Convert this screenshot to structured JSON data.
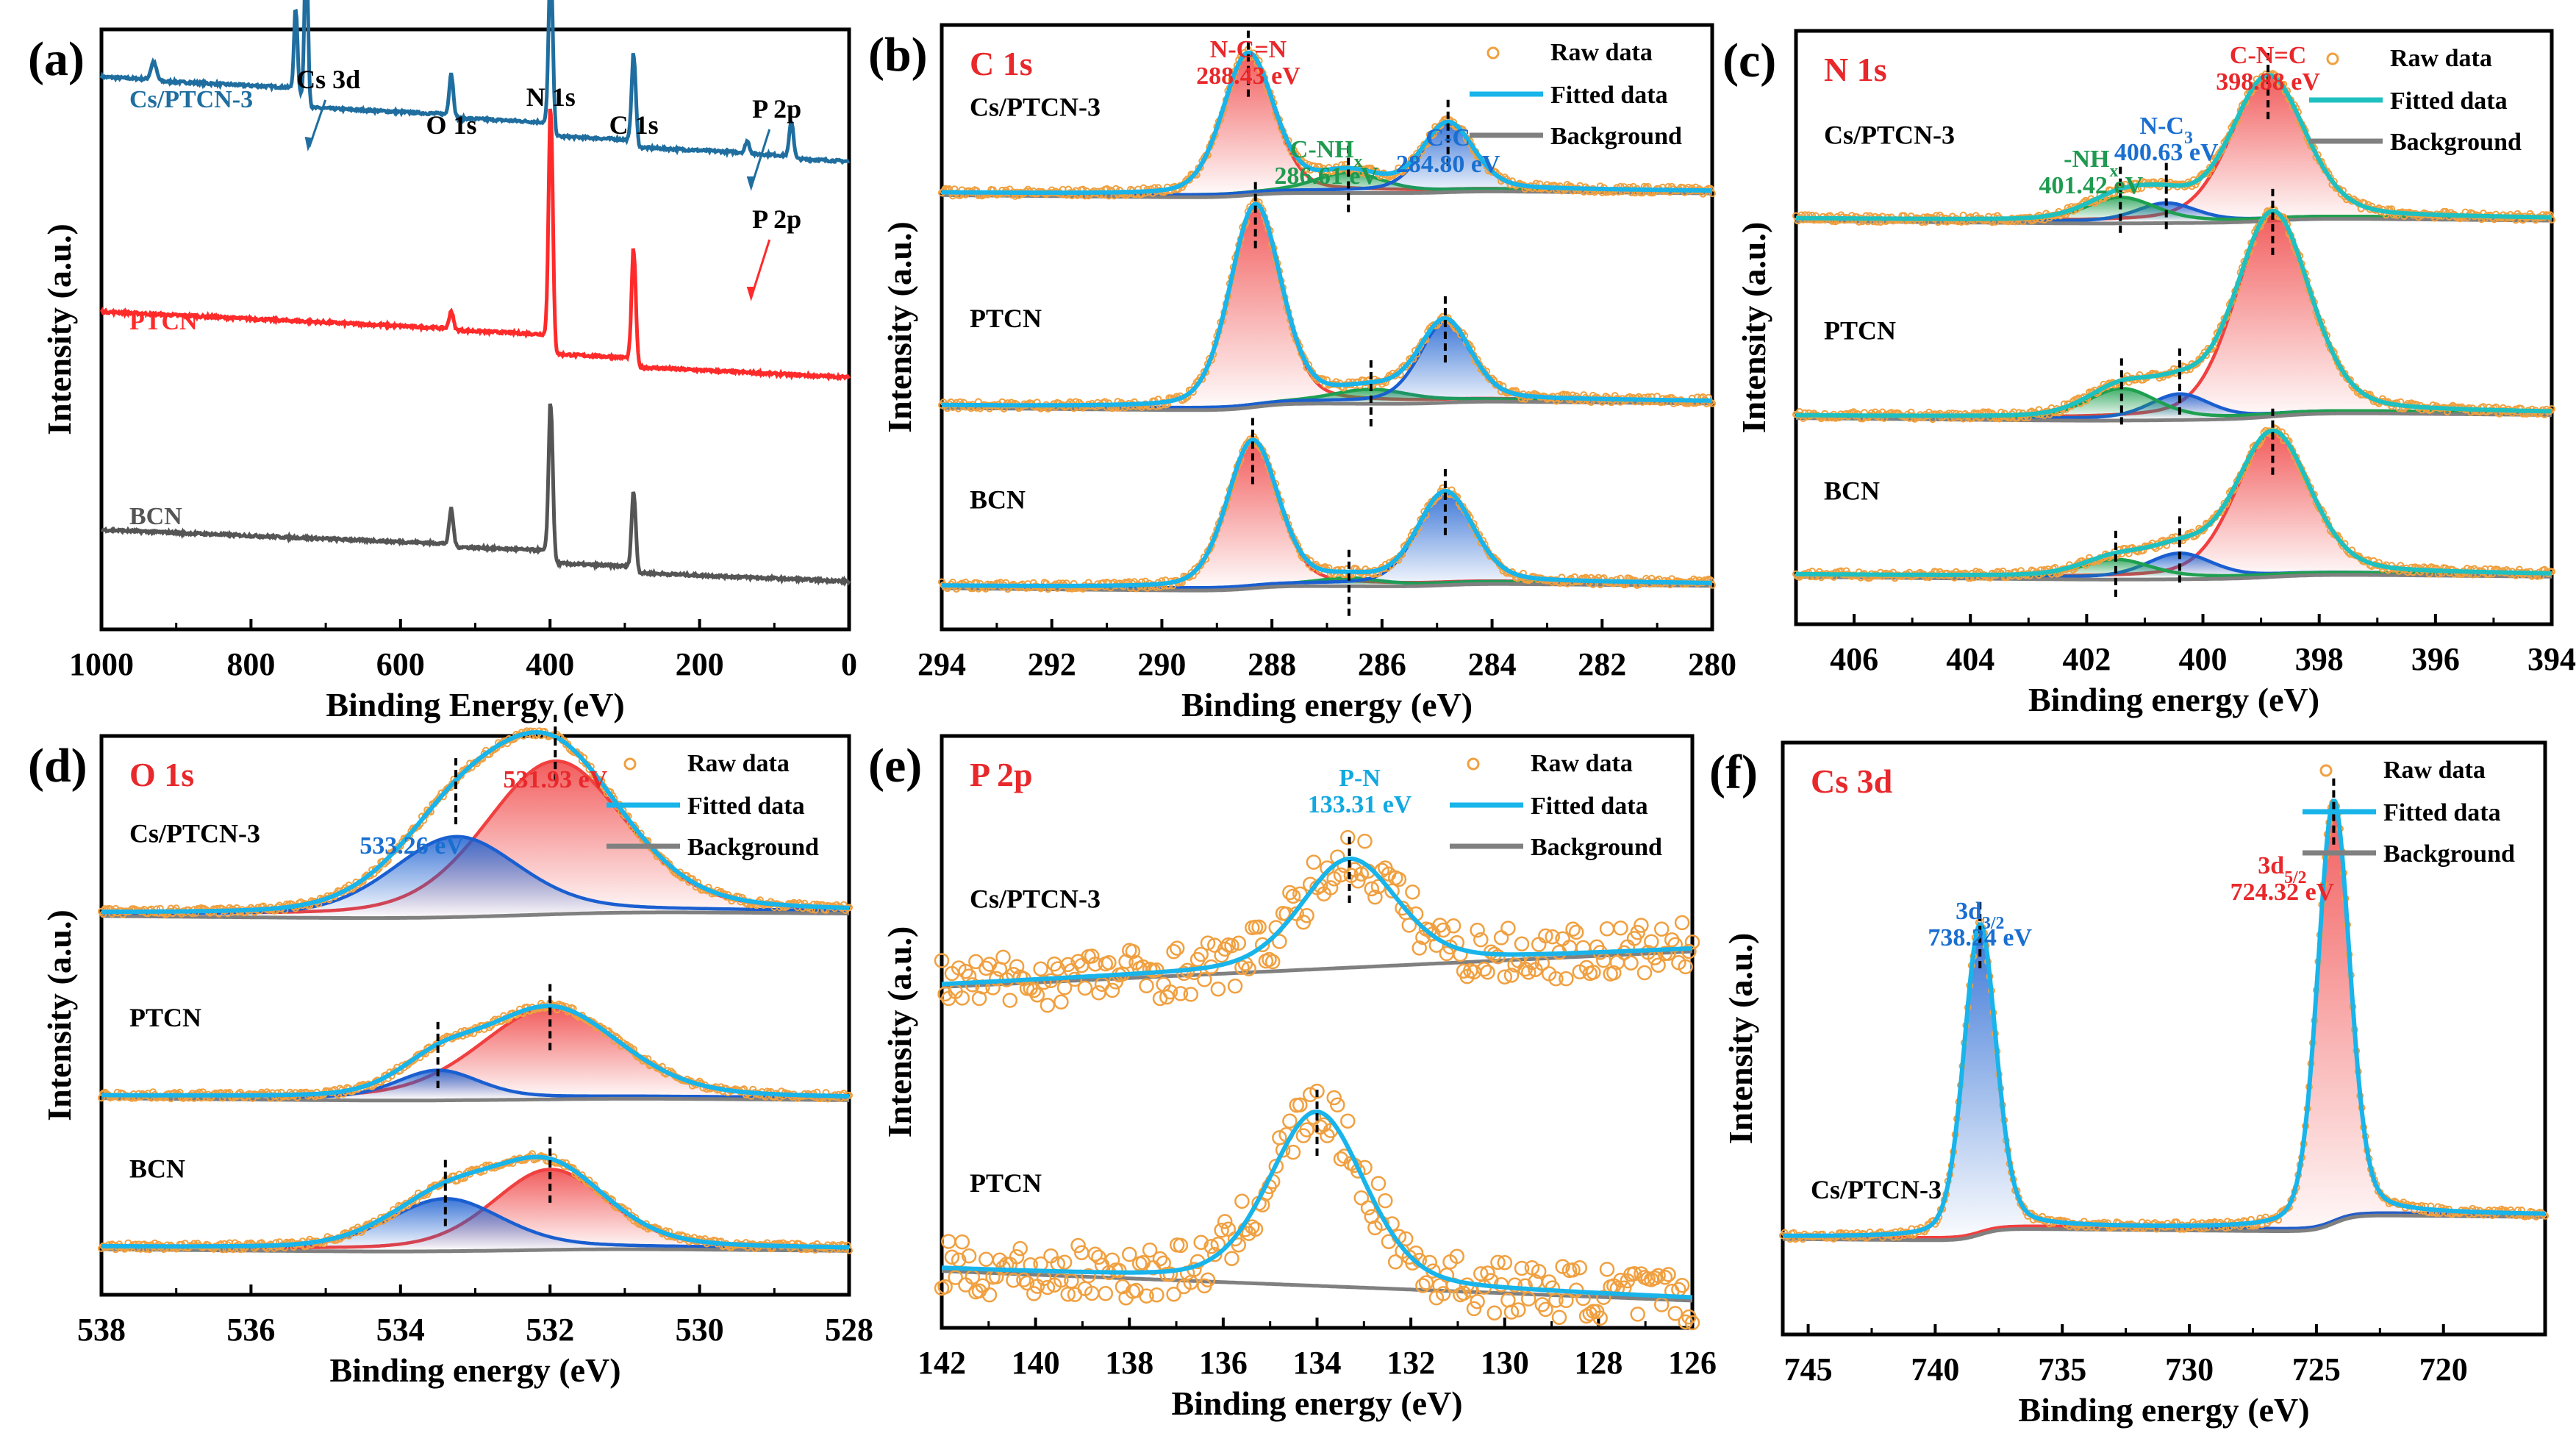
{
  "figure": {
    "legend_labels": {
      "raw": "Raw data",
      "fit": "Fitted data",
      "bg": "Background"
    },
    "colors": {
      "blue_survey": "#1f6e9f",
      "red": "#ff2a2a",
      "gray": "#555555",
      "fit": "#18b4ea",
      "fit_teal": "#1fc0c0",
      "raw": "#f0a040",
      "bg": "#808080",
      "peak_red": "#f04040",
      "peak_blue": "#1a5fd0",
      "peak_green": "#1fa050",
      "label_red": "#e8282b",
      "label_blue": "#1a6fd0",
      "label_green": "#1f9a50",
      "label_cyan": "#12a8e0"
    }
  },
  "chart_data": [
    {
      "id": "a",
      "panel_label": "(a)",
      "type": "line",
      "title": "",
      "xlabel": "Binding Energy (eV)",
      "ylabel": "Intensity (a.u.)",
      "xlim": [
        1000,
        0
      ],
      "xticks": [
        1000,
        800,
        600,
        400,
        200,
        0
      ],
      "xtick_labels": [
        "1000",
        "800",
        "600",
        "400",
        "200",
        "0"
      ],
      "series": [
        {
          "name": "Cs/PTCN-3",
          "color": "#1f6e9f",
          "offset": 0.78,
          "slope": 0.06,
          "peaks": [
            [
              726,
              0.26,
              2.5
            ],
            [
              740,
              0.14,
              2.5
            ],
            [
              532,
              0.07,
              3
            ],
            [
              399,
              0.28,
              3
            ],
            [
              288,
              0.15,
              3
            ],
            [
              136,
              0.02,
              3
            ],
            [
              77,
              0.06,
              3
            ],
            [
              930,
              0.03,
              4
            ]
          ]
        },
        {
          "name": "PTCN",
          "color": "#ff2a2a",
          "offset": 0.42,
          "slope": 0.06,
          "peaks": [
            [
              532,
              0.03,
              3
            ],
            [
              399,
              0.4,
              3
            ],
            [
              288,
              0.19,
              3
            ]
          ]
        },
        {
          "name": "BCN",
          "color": "#555555",
          "offset": 0.08,
          "slope": 0.05,
          "peaks": [
            [
              532,
              0.06,
              3
            ],
            [
              399,
              0.26,
              3
            ],
            [
              288,
              0.13,
              3
            ]
          ]
        }
      ],
      "annotations": [
        {
          "text": "Cs 3d",
          "x": 726
        },
        {
          "text": "O 1s",
          "x": 532
        },
        {
          "text": "N 1s",
          "x": 399
        },
        {
          "text": "C 1s",
          "x": 288
        },
        {
          "text": "P 2p",
          "x": 136,
          "series": "Cs/PTCN-3"
        },
        {
          "text": "P 2p",
          "x": 136,
          "series": "PTCN"
        }
      ]
    },
    {
      "id": "b",
      "panel_label": "(b)",
      "type": "line",
      "title": "C 1s",
      "xlabel": "Binding energy (eV)",
      "ylabel": "Intensity (a.u.)",
      "xlim": [
        294,
        280
      ],
      "xticks": [
        294,
        292,
        290,
        288,
        286,
        284,
        282,
        280
      ],
      "xtick_labels": [
        "294",
        "292",
        "290",
        "288",
        "286",
        "284",
        "282",
        "280"
      ],
      "legend": [
        "Raw data",
        "Fitted data",
        "Background"
      ],
      "peak_labels": [
        {
          "name": "N-C=N",
          "value": "288.43 eV",
          "x": 288.43,
          "color": "#e8282b"
        },
        {
          "name": "C-NHx",
          "value": "286.61 eV",
          "x": 286.61,
          "color": "#1f9a50"
        },
        {
          "name": "C-C",
          "value": "284.80 eV",
          "x": 284.8,
          "color": "#1a6fd0"
        }
      ],
      "series": [
        {
          "name": "Cs/PTCN-3",
          "offset": 0.73,
          "components": [
            {
              "center": 288.43,
              "height": 0.23,
              "fwhm": 1.1,
              "color": "#f04040"
            },
            {
              "center": 286.61,
              "height": 0.03,
              "fwhm": 1.4,
              "color": "#1fa050"
            },
            {
              "center": 284.8,
              "height": 0.11,
              "fwhm": 1.1,
              "color": "#1a5fd0"
            }
          ]
        },
        {
          "name": "PTCN",
          "offset": 0.38,
          "components": [
            {
              "center": 288.3,
              "height": 0.33,
              "fwhm": 1.1,
              "color": "#f04040"
            },
            {
              "center": 286.2,
              "height": 0.02,
              "fwhm": 1.6,
              "color": "#1fa050"
            },
            {
              "center": 284.85,
              "height": 0.13,
              "fwhm": 1.1,
              "color": "#1a5fd0"
            }
          ]
        },
        {
          "name": "BCN",
          "offset": 0.08,
          "components": [
            {
              "center": 288.35,
              "height": 0.24,
              "fwhm": 1.1,
              "color": "#f04040"
            },
            {
              "center": 286.6,
              "height": 0.01,
              "fwhm": 1.2,
              "color": "#1fa050"
            },
            {
              "center": 284.85,
              "height": 0.15,
              "fwhm": 1.2,
              "color": "#1a5fd0"
            }
          ]
        }
      ]
    },
    {
      "id": "c",
      "panel_label": "(c)",
      "type": "line",
      "title": "N 1s",
      "xlabel": "Binding energy (eV)",
      "ylabel": "Intensity (a.u.)",
      "xlim": [
        407,
        394
      ],
      "xticks": [
        406,
        404,
        402,
        400,
        398,
        396,
        394
      ],
      "xtick_labels": [
        "406",
        "404",
        "402",
        "400",
        "398",
        "396",
        "394"
      ],
      "legend": [
        "Raw data",
        "Fitted data",
        "Background"
      ],
      "peak_labels": [
        {
          "name": "C-N=C",
          "value": "398.88 eV",
          "x": 398.88,
          "color": "#e8282b"
        },
        {
          "name": "N-C3",
          "value": "400.63 eV",
          "x": 400.63,
          "color": "#1a6fd0"
        },
        {
          "name": "-NHx",
          "value": "401.42 eV",
          "x": 401.42,
          "color": "#1f9a50"
        }
      ],
      "series": [
        {
          "name": "Cs/PTCN-3",
          "offset": 0.69,
          "components": [
            {
              "center": 398.88,
              "height": 0.24,
              "fwhm": 1.5,
              "color": "#f04040"
            },
            {
              "center": 400.63,
              "height": 0.03,
              "fwhm": 1.2,
              "color": "#1a5fd0"
            },
            {
              "center": 401.42,
              "height": 0.04,
              "fwhm": 1.4,
              "color": "#1fa050"
            }
          ]
        },
        {
          "name": "PTCN",
          "offset": 0.36,
          "components": [
            {
              "center": 398.8,
              "height": 0.34,
              "fwhm": 1.5,
              "color": "#f04040"
            },
            {
              "center": 400.4,
              "height": 0.04,
              "fwhm": 1.2,
              "color": "#1a5fd0"
            },
            {
              "center": 401.4,
              "height": 0.05,
              "fwhm": 1.4,
              "color": "#1fa050"
            }
          ]
        },
        {
          "name": "BCN",
          "offset": 0.09,
          "components": [
            {
              "center": 398.8,
              "height": 0.24,
              "fwhm": 1.5,
              "color": "#f04040"
            },
            {
              "center": 400.4,
              "height": 0.04,
              "fwhm": 1.3,
              "color": "#1a5fd0"
            },
            {
              "center": 401.5,
              "height": 0.03,
              "fwhm": 1.4,
              "color": "#1fa050"
            }
          ]
        }
      ]
    },
    {
      "id": "d",
      "panel_label": "(d)",
      "type": "line",
      "title": "O 1s",
      "xlabel": "Binding energy (eV)",
      "ylabel": "Intensity (a.u.)",
      "xlim": [
        538,
        528
      ],
      "xticks": [
        538,
        536,
        534,
        532,
        530,
        528
      ],
      "xtick_labels": [
        "538",
        "536",
        "534",
        "532",
        "530",
        "528"
      ],
      "legend": [
        "Raw data",
        "Fitted data",
        "Background"
      ],
      "peak_labels": [
        {
          "name": "",
          "value": "531.93 eV",
          "x": 531.93,
          "color": "#e8282b"
        },
        {
          "name": "",
          "value": "533.26 eV",
          "x": 533.26,
          "color": "#1a6fd0"
        }
      ],
      "series": [
        {
          "name": "Cs/PTCN-3",
          "offset": 0.69,
          "components": [
            {
              "center": 531.93,
              "height": 0.27,
              "fwhm": 2.2,
              "color": "#f04040"
            },
            {
              "center": 533.26,
              "height": 0.14,
              "fwhm": 2.0,
              "color": "#1a5fd0"
            }
          ]
        },
        {
          "name": "PTCN",
          "offset": 0.36,
          "components": [
            {
              "center": 532.0,
              "height": 0.16,
              "fwhm": 2.2,
              "color": "#f04040"
            },
            {
              "center": 533.5,
              "height": 0.05,
              "fwhm": 1.3,
              "color": "#1a5fd0"
            }
          ]
        },
        {
          "name": "BCN",
          "offset": 0.09,
          "components": [
            {
              "center": 532.0,
              "height": 0.14,
              "fwhm": 1.8,
              "color": "#f04040"
            },
            {
              "center": 533.4,
              "height": 0.09,
              "fwhm": 1.8,
              "color": "#1a5fd0"
            }
          ]
        }
      ]
    },
    {
      "id": "e",
      "panel_label": "(e)",
      "type": "line",
      "title": "P 2p",
      "xlabel": "Binding energy (eV)",
      "ylabel": "Intensity (a.u.)",
      "xlim": [
        142,
        126
      ],
      "xticks": [
        142,
        140,
        138,
        136,
        134,
        132,
        130,
        128,
        126
      ],
      "xtick_labels": [
        "142",
        "140",
        "138",
        "136",
        "134",
        "132",
        "130",
        "128",
        "126"
      ],
      "legend": [
        "Raw data",
        "Fitted data",
        "Background"
      ],
      "peak_labels": [
        {
          "name": "P-N",
          "value": "133.31 eV",
          "x": 133.31,
          "color": "#12a8e0"
        }
      ],
      "series": [
        {
          "name": "Cs/PTCN-3",
          "offset": 0.58,
          "bg_slope": 0.06,
          "components": [
            {
              "center": 133.31,
              "height": 0.18,
              "fwhm": 2.4,
              "color": "#18b4ea"
            }
          ]
        },
        {
          "name": "PTCN",
          "offset": 0.1,
          "bg_slope": -0.05,
          "components": [
            {
              "center": 134.0,
              "height": 0.29,
              "fwhm": 2.4,
              "color": "#18b4ea"
            }
          ]
        }
      ]
    },
    {
      "id": "f",
      "panel_label": "(f)",
      "type": "line",
      "title": "Cs 3d",
      "xlabel": "Binding energy (eV)",
      "ylabel": "Intensity (a.u.)",
      "xlim": [
        746,
        716
      ],
      "xticks": [
        745,
        740,
        735,
        730,
        725,
        720
      ],
      "xtick_labels": [
        "745",
        "740",
        "735",
        "730",
        "725",
        "720"
      ],
      "legend": [
        "Raw data",
        "Fitted data",
        "Background"
      ],
      "peak_labels": [
        {
          "name": "3d3/2",
          "value": "738.24 eV",
          "x": 738.24,
          "color": "#1a6fd0"
        },
        {
          "name": "3d5/2",
          "value": "724.32 eV",
          "x": 724.32,
          "color": "#e8282b"
        }
      ],
      "series": [
        {
          "name": "Cs/PTCN-3",
          "offset": 0.19,
          "components": [
            {
              "center": 738.24,
              "height": 0.52,
              "fwhm": 1.5,
              "color": "#1a5fd0"
            },
            {
              "center": 724.32,
              "height": 0.71,
              "fwhm": 1.5,
              "color": "#f04040"
            }
          ]
        }
      ]
    }
  ]
}
